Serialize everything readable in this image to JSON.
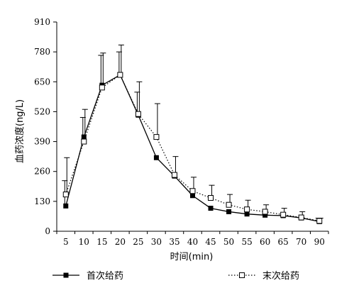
{
  "chart_data": {
    "type": "line",
    "xlabel": "时间(min)",
    "ylabel": "血药浓度(ng/L)",
    "ylim": [
      0,
      910
    ],
    "yticks": [
      0,
      130,
      260,
      390,
      520,
      650,
      780,
      910
    ],
    "categories": [
      "5",
      "10",
      "15",
      "20",
      "25",
      "30",
      "35",
      "40",
      "45",
      "50",
      "55",
      "60",
      "65",
      "70",
      "90"
    ],
    "grid": false,
    "legend_position": "bottom",
    "series": [
      {
        "name": "首次给药",
        "style": "solid",
        "marker": "filled-square",
        "color": "#000000",
        "values": [
          110,
          410,
          635,
          680,
          505,
          320,
          240,
          155,
          100,
          85,
          75,
          70,
          68,
          58,
          42
        ],
        "error": [
          110,
          85,
          130,
          100,
          100,
          0,
          0,
          0,
          0,
          0,
          0,
          0,
          0,
          0,
          15
        ]
      },
      {
        "name": "末次给药",
        "style": "dotted",
        "marker": "open-square",
        "color": "#000000",
        "values": [
          160,
          390,
          625,
          680,
          510,
          410,
          245,
          175,
          145,
          115,
          95,
          85,
          72,
          60,
          45
        ],
        "error": [
          160,
          140,
          150,
          130,
          140,
          145,
          80,
          60,
          55,
          45,
          40,
          30,
          28,
          25,
          12
        ]
      }
    ]
  }
}
